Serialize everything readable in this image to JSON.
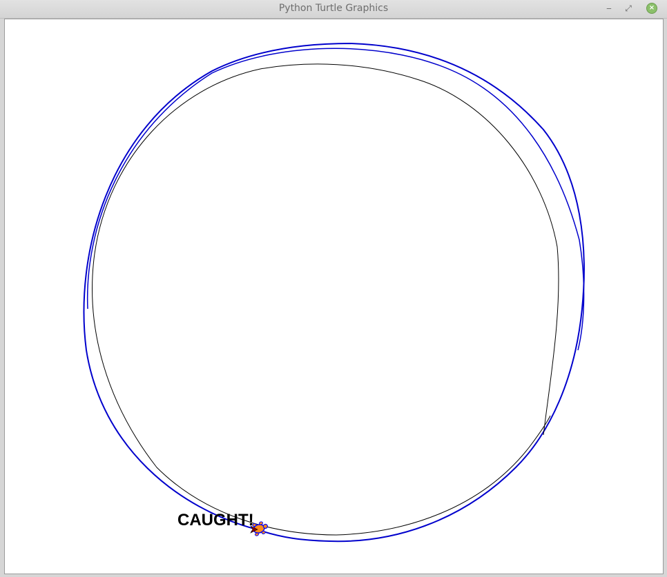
{
  "window": {
    "title": "Python Turtle Graphics",
    "minimize_glyph": "‒",
    "maximize_glyph": "⤢",
    "close_glyph": "×"
  },
  "canvas": {
    "background": "#ffffff",
    "message": "CAUGHT!",
    "message_color": "#000000",
    "chaser_path_color": "#000000",
    "target_path_color": "#0000cc",
    "turtle_fill": "#ff8c1a",
    "turtle_outline": "#0000ff"
  }
}
